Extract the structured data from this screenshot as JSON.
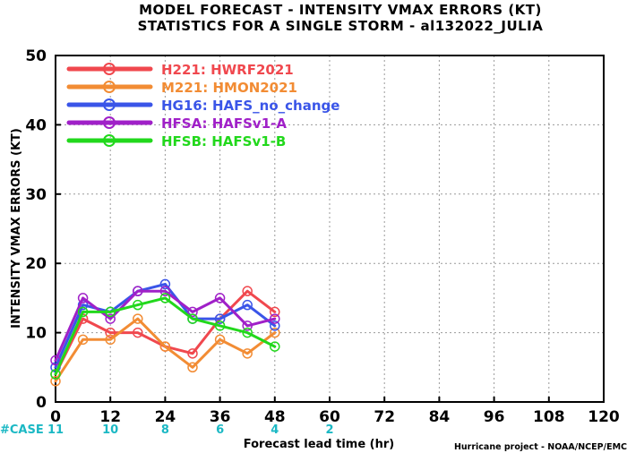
{
  "chart_data": {
    "type": "line",
    "title": "MODEL FORECAST - INTENSITY VMAX ERRORS (KT)",
    "subtitle": "STATISTICS FOR A SINGLE STORM - al132022_JULIA",
    "xlabel": "Forecast lead time (hr)",
    "ylabel": "INTENSITY VMAX ERRORS (KT)",
    "xlim": [
      0,
      120
    ],
    "ylim": [
      0,
      50
    ],
    "x_ticks": [
      "0",
      "12",
      "24",
      "36",
      "48",
      "60",
      "72",
      "84",
      "96",
      "108",
      "120"
    ],
    "y_ticks": [
      "0",
      "10",
      "20",
      "30",
      "40",
      "50"
    ],
    "grid": true,
    "legend_position": "top-left",
    "x": [
      0,
      6,
      12,
      18,
      24,
      30,
      36,
      42,
      48
    ],
    "series": [
      {
        "name": "H221: HWRF2021",
        "color": "#f0484e",
        "values": [
          4,
          12,
          10,
          10,
          8,
          7,
          12,
          16,
          13
        ]
      },
      {
        "name": "M221: HMON2021",
        "color": "#f28c34",
        "values": [
          3,
          9,
          9,
          12,
          8,
          5,
          9,
          7,
          10
        ]
      },
      {
        "name": "HG16: HAFS_no_change",
        "color": "#3a55e8",
        "values": [
          5,
          14,
          13,
          16,
          17,
          12,
          12,
          14,
          11
        ]
      },
      {
        "name": "HFSA: HAFSv1-A",
        "color": "#a020c8",
        "values": [
          6,
          15,
          12,
          16,
          16,
          13,
          15,
          11,
          12
        ]
      },
      {
        "name": "HFSB: HAFSv1-B",
        "color": "#22d81c",
        "values": [
          4,
          13,
          13,
          14,
          15,
          12,
          11,
          10,
          8
        ]
      }
    ],
    "case_label": "#CASE",
    "case_counts": [
      {
        "x": 0,
        "count": "11"
      },
      {
        "x": 12,
        "count": "10"
      },
      {
        "x": 24,
        "count": "8"
      },
      {
        "x": 36,
        "count": "6"
      },
      {
        "x": 48,
        "count": "4"
      },
      {
        "x": 60,
        "count": "2"
      }
    ],
    "credit": "Hurricane project - NOAA/NCEP/EMC"
  }
}
